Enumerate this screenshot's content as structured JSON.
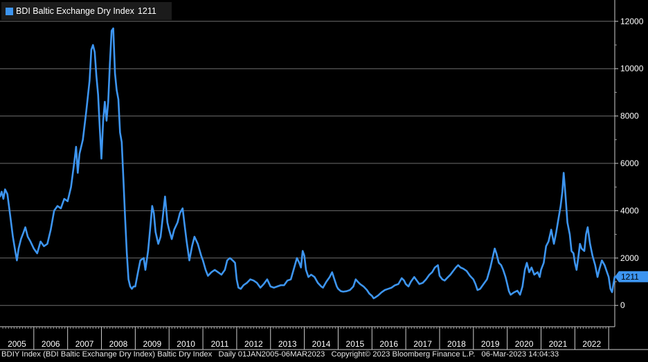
{
  "legend": {
    "label": "BDI Baltic Exchange Dry Index",
    "value": "1211",
    "color": "#3d95f0"
  },
  "footer": {
    "security": "BDIY Index (BDI Baltic Exchange Dry Index) Baltic Dry Index",
    "range": "Daily 01JAN2005-06MAR2023",
    "copyright": "Copyright© 2023 Bloomberg Finance L.P.",
    "timestamp": "06-Mar-2023 14:04:33"
  },
  "chart_data": {
    "type": "line",
    "title": "BDI Baltic Exchange Dry Index",
    "y_axis_side": "right",
    "ylim": [
      -900,
      12900
    ],
    "yticks": [
      0,
      2000,
      4000,
      6000,
      8000,
      10000,
      12000
    ],
    "ytick_labels": [
      "0",
      "2000",
      "4000",
      "6000",
      "8000",
      "10000",
      "12000"
    ],
    "xlim": [
      2005.0,
      2023.18
    ],
    "year_labels": [
      "2005",
      "2006",
      "2007",
      "2008",
      "2009",
      "2010",
      "2011",
      "2012",
      "2013",
      "2014",
      "2015",
      "2016",
      "2017",
      "2018",
      "2019",
      "2020",
      "2021",
      "2022"
    ],
    "last_value": 1211,
    "last_value_label": "1211",
    "series": [
      {
        "name": "BDI Baltic Exchange Dry Index",
        "color": "#3d95f0",
        "points": [
          [
            2005.0,
            4600
          ],
          [
            2005.05,
            4800
          ],
          [
            2005.1,
            4500
          ],
          [
            2005.15,
            4900
          ],
          [
            2005.22,
            4700
          ],
          [
            2005.3,
            3800
          ],
          [
            2005.38,
            2900
          ],
          [
            2005.45,
            2300
          ],
          [
            2005.5,
            1900
          ],
          [
            2005.55,
            2400
          ],
          [
            2005.62,
            2800
          ],
          [
            2005.7,
            3100
          ],
          [
            2005.75,
            3300
          ],
          [
            2005.82,
            2900
          ],
          [
            2005.9,
            2700
          ],
          [
            2006.0,
            2400
          ],
          [
            2006.1,
            2200
          ],
          [
            2006.2,
            2700
          ],
          [
            2006.3,
            2500
          ],
          [
            2006.4,
            2600
          ],
          [
            2006.5,
            3200
          ],
          [
            2006.6,
            4000
          ],
          [
            2006.7,
            4200
          ],
          [
            2006.8,
            4100
          ],
          [
            2006.9,
            4500
          ],
          [
            2007.0,
            4400
          ],
          [
            2007.1,
            5000
          ],
          [
            2007.2,
            6100
          ],
          [
            2007.25,
            6700
          ],
          [
            2007.3,
            5600
          ],
          [
            2007.35,
            6400
          ],
          [
            2007.45,
            7000
          ],
          [
            2007.55,
            8200
          ],
          [
            2007.65,
            9500
          ],
          [
            2007.7,
            10800
          ],
          [
            2007.75,
            11000
          ],
          [
            2007.8,
            10700
          ],
          [
            2007.85,
            9700
          ],
          [
            2007.9,
            8900
          ],
          [
            2007.95,
            7500
          ],
          [
            2008.0,
            6200
          ],
          [
            2008.05,
            7800
          ],
          [
            2008.1,
            8600
          ],
          [
            2008.15,
            7800
          ],
          [
            2008.2,
            8600
          ],
          [
            2008.25,
            10200
          ],
          [
            2008.3,
            11600
          ],
          [
            2008.35,
            11700
          ],
          [
            2008.4,
            9800
          ],
          [
            2008.45,
            9100
          ],
          [
            2008.5,
            8700
          ],
          [
            2008.55,
            7300
          ],
          [
            2008.6,
            6900
          ],
          [
            2008.65,
            5300
          ],
          [
            2008.7,
            3700
          ],
          [
            2008.75,
            2200
          ],
          [
            2008.8,
            1100
          ],
          [
            2008.85,
            800
          ],
          [
            2008.9,
            700
          ],
          [
            2008.95,
            800
          ],
          [
            2009.0,
            800
          ],
          [
            2009.08,
            1400
          ],
          [
            2009.15,
            1900
          ],
          [
            2009.25,
            2000
          ],
          [
            2009.3,
            1500
          ],
          [
            2009.38,
            2300
          ],
          [
            2009.45,
            3400
          ],
          [
            2009.5,
            4200
          ],
          [
            2009.55,
            3900
          ],
          [
            2009.6,
            3100
          ],
          [
            2009.68,
            2600
          ],
          [
            2009.75,
            2900
          ],
          [
            2009.82,
            3800
          ],
          [
            2009.88,
            4600
          ],
          [
            2009.95,
            3500
          ],
          [
            2010.0,
            3200
          ],
          [
            2010.08,
            2800
          ],
          [
            2010.15,
            3200
          ],
          [
            2010.25,
            3500
          ],
          [
            2010.32,
            3900
          ],
          [
            2010.4,
            4100
          ],
          [
            2010.45,
            3500
          ],
          [
            2010.52,
            2700
          ],
          [
            2010.6,
            1900
          ],
          [
            2010.68,
            2500
          ],
          [
            2010.75,
            2900
          ],
          [
            2010.85,
            2600
          ],
          [
            2010.95,
            2100
          ],
          [
            2011.0,
            1900
          ],
          [
            2011.08,
            1500
          ],
          [
            2011.15,
            1250
          ],
          [
            2011.25,
            1400
          ],
          [
            2011.35,
            1500
          ],
          [
            2011.45,
            1400
          ],
          [
            2011.55,
            1300
          ],
          [
            2011.65,
            1500
          ],
          [
            2011.72,
            1900
          ],
          [
            2011.8,
            2000
          ],
          [
            2011.88,
            1900
          ],
          [
            2011.95,
            1800
          ],
          [
            2012.0,
            1100
          ],
          [
            2012.05,
            750
          ],
          [
            2012.12,
            700
          ],
          [
            2012.2,
            850
          ],
          [
            2012.3,
            950
          ],
          [
            2012.4,
            1100
          ],
          [
            2012.5,
            1050
          ],
          [
            2012.6,
            950
          ],
          [
            2012.7,
            750
          ],
          [
            2012.8,
            900
          ],
          [
            2012.9,
            1100
          ],
          [
            2013.0,
            800
          ],
          [
            2013.1,
            750
          ],
          [
            2013.2,
            800
          ],
          [
            2013.3,
            850
          ],
          [
            2013.4,
            850
          ],
          [
            2013.5,
            1050
          ],
          [
            2013.6,
            1100
          ],
          [
            2013.7,
            1600
          ],
          [
            2013.78,
            2000
          ],
          [
            2013.85,
            1800
          ],
          [
            2013.9,
            1600
          ],
          [
            2013.95,
            2300
          ],
          [
            2014.0,
            2100
          ],
          [
            2014.05,
            1500
          ],
          [
            2014.12,
            1200
          ],
          [
            2014.2,
            1300
          ],
          [
            2014.3,
            1200
          ],
          [
            2014.4,
            950
          ],
          [
            2014.5,
            800
          ],
          [
            2014.55,
            750
          ],
          [
            2014.65,
            1000
          ],
          [
            2014.75,
            1200
          ],
          [
            2014.82,
            1400
          ],
          [
            2014.9,
            1050
          ],
          [
            2014.96,
            800
          ],
          [
            2015.0,
            700
          ],
          [
            2015.08,
            600
          ],
          [
            2015.15,
            580
          ],
          [
            2015.25,
            600
          ],
          [
            2015.35,
            650
          ],
          [
            2015.45,
            800
          ],
          [
            2015.52,
            1100
          ],
          [
            2015.58,
            1000
          ],
          [
            2015.65,
            900
          ],
          [
            2015.75,
            800
          ],
          [
            2015.85,
            650
          ],
          [
            2015.92,
            500
          ],
          [
            2016.0,
            400
          ],
          [
            2016.05,
            300
          ],
          [
            2016.1,
            340
          ],
          [
            2016.18,
            420
          ],
          [
            2016.28,
            550
          ],
          [
            2016.38,
            650
          ],
          [
            2016.48,
            700
          ],
          [
            2016.58,
            750
          ],
          [
            2016.68,
            850
          ],
          [
            2016.78,
            900
          ],
          [
            2016.88,
            1150
          ],
          [
            2016.95,
            1050
          ],
          [
            2017.0,
            900
          ],
          [
            2017.08,
            800
          ],
          [
            2017.15,
            1000
          ],
          [
            2017.25,
            1200
          ],
          [
            2017.3,
            1100
          ],
          [
            2017.4,
            900
          ],
          [
            2017.5,
            950
          ],
          [
            2017.6,
            1100
          ],
          [
            2017.7,
            1300
          ],
          [
            2017.78,
            1400
          ],
          [
            2017.86,
            1600
          ],
          [
            2017.95,
            1700
          ],
          [
            2018.0,
            1250
          ],
          [
            2018.08,
            1100
          ],
          [
            2018.15,
            1050
          ],
          [
            2018.25,
            1200
          ],
          [
            2018.32,
            1300
          ],
          [
            2018.4,
            1450
          ],
          [
            2018.48,
            1600
          ],
          [
            2018.55,
            1700
          ],
          [
            2018.62,
            1600
          ],
          [
            2018.7,
            1550
          ],
          [
            2018.8,
            1450
          ],
          [
            2018.9,
            1250
          ],
          [
            2019.0,
            1100
          ],
          [
            2019.06,
            900
          ],
          [
            2019.12,
            650
          ],
          [
            2019.2,
            700
          ],
          [
            2019.3,
            900
          ],
          [
            2019.4,
            1100
          ],
          [
            2019.5,
            1600
          ],
          [
            2019.58,
            2100
          ],
          [
            2019.63,
            2400
          ],
          [
            2019.68,
            2200
          ],
          [
            2019.75,
            1800
          ],
          [
            2019.82,
            1700
          ],
          [
            2019.88,
            1500
          ],
          [
            2019.95,
            1200
          ],
          [
            2020.0,
            900
          ],
          [
            2020.05,
            600
          ],
          [
            2020.1,
            450
          ],
          [
            2020.2,
            550
          ],
          [
            2020.3,
            620
          ],
          [
            2020.38,
            450
          ],
          [
            2020.45,
            800
          ],
          [
            2020.52,
            1500
          ],
          [
            2020.58,
            1800
          ],
          [
            2020.65,
            1400
          ],
          [
            2020.72,
            1600
          ],
          [
            2020.8,
            1300
          ],
          [
            2020.9,
            1400
          ],
          [
            2020.96,
            1200
          ],
          [
            2021.0,
            1500
          ],
          [
            2021.08,
            1800
          ],
          [
            2021.15,
            2500
          ],
          [
            2021.22,
            2700
          ],
          [
            2021.3,
            3200
          ],
          [
            2021.38,
            2600
          ],
          [
            2021.45,
            3100
          ],
          [
            2021.52,
            3700
          ],
          [
            2021.58,
            4200
          ],
          [
            2021.63,
            4800
          ],
          [
            2021.67,
            5600
          ],
          [
            2021.72,
            4700
          ],
          [
            2021.78,
            3500
          ],
          [
            2021.85,
            3000
          ],
          [
            2021.9,
            2300
          ],
          [
            2021.96,
            2200
          ],
          [
            2022.0,
            1800
          ],
          [
            2022.05,
            1500
          ],
          [
            2022.1,
            2000
          ],
          [
            2022.15,
            2600
          ],
          [
            2022.2,
            2400
          ],
          [
            2022.28,
            2300
          ],
          [
            2022.33,
            3000
          ],
          [
            2022.38,
            3300
          ],
          [
            2022.45,
            2600
          ],
          [
            2022.52,
            2100
          ],
          [
            2022.6,
            1700
          ],
          [
            2022.67,
            1200
          ],
          [
            2022.72,
            1500
          ],
          [
            2022.8,
            1900
          ],
          [
            2022.88,
            1700
          ],
          [
            2022.95,
            1400
          ],
          [
            2023.0,
            1200
          ],
          [
            2023.05,
            700
          ],
          [
            2023.1,
            560
          ],
          [
            2023.14,
            900
          ],
          [
            2023.18,
            1211
          ]
        ]
      }
    ]
  }
}
